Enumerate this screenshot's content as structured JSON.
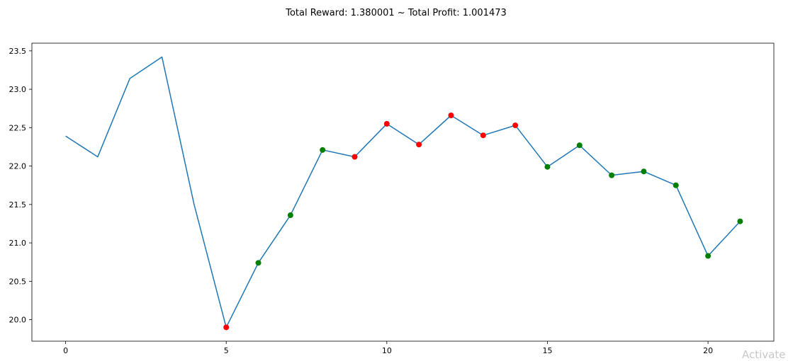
{
  "watermark": "Activate",
  "chart_data": {
    "type": "line",
    "title": "Total Reward: 1.380001 ~ Total Profit: 1.001473",
    "xlabel": "",
    "ylabel": "",
    "xlim": [
      -1.05,
      22.05
    ],
    "ylim": [
      19.72,
      23.6
    ],
    "xticks": [
      0,
      5,
      10,
      15,
      20
    ],
    "yticks": [
      20.0,
      20.5,
      21.0,
      21.5,
      22.0,
      22.5,
      23.0,
      23.5
    ],
    "grid": false,
    "series": [
      {
        "x": [
          0,
          1,
          2,
          3,
          4,
          5,
          6,
          7,
          8,
          9,
          10,
          11,
          12,
          13,
          14,
          15,
          16,
          17,
          18,
          19,
          20,
          21
        ],
        "values": [
          22.39,
          22.12,
          23.14,
          23.42,
          21.5,
          19.9,
          20.74,
          21.36,
          22.21,
          22.12,
          22.55,
          22.28,
          22.66,
          22.4,
          22.53,
          21.99,
          22.27,
          21.88,
          21.93,
          21.75,
          20.83,
          21.28
        ],
        "color": "#1f77b4"
      }
    ],
    "markers": {
      "red": {
        "color": "#ff0000",
        "x": [
          5,
          9,
          10,
          11,
          12,
          13,
          14
        ]
      },
      "green": {
        "color": "#008000",
        "x": [
          6,
          7,
          8,
          15,
          16,
          17,
          18,
          19,
          20,
          21
        ]
      }
    }
  }
}
